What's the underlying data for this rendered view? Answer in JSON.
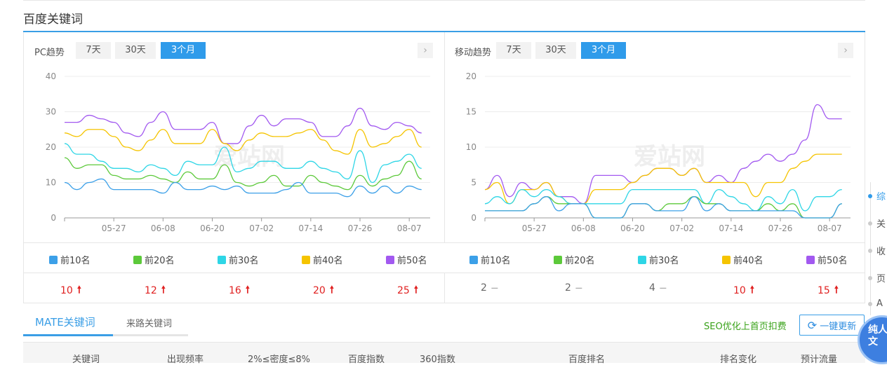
{
  "section_title": "百度关键词",
  "colors": {
    "accent": "#2f9bea",
    "top10": "#3ca0e8",
    "top20": "#5cc93a",
    "top30": "#2ed6e6",
    "top40": "#f5c400",
    "top50": "#a259f0",
    "up": "#e02020",
    "seo": "#3aa31a"
  },
  "ranges": [
    "7天",
    "30天",
    "3个月"
  ],
  "active_range": "3个月",
  "watermark": "爱站网",
  "legend": [
    "前10名",
    "前20名",
    "前30名",
    "前40名",
    "前50名"
  ],
  "pc": {
    "title": "PC趋势",
    "values": [
      {
        "v": "10",
        "trend": "up"
      },
      {
        "v": "12",
        "trend": "up"
      },
      {
        "v": "16",
        "trend": "up"
      },
      {
        "v": "20",
        "trend": "up"
      },
      {
        "v": "25",
        "trend": "up"
      }
    ]
  },
  "mobile": {
    "title": "移动趋势",
    "values": [
      {
        "v": "2",
        "trend": "flat"
      },
      {
        "v": "2",
        "trend": "flat"
      },
      {
        "v": "4",
        "trend": "flat"
      },
      {
        "v": "10",
        "trend": "up"
      },
      {
        "v": "15",
        "trend": "up"
      }
    ]
  },
  "chart_data": [
    {
      "type": "line",
      "title": "PC趋势",
      "ylim": [
        0,
        40
      ],
      "yticks": [
        0,
        10,
        20,
        30,
        40
      ],
      "xticks": [
        "05-27",
        "06-08",
        "06-20",
        "07-02",
        "07-14",
        "07-26",
        "08-07"
      ],
      "grid": true,
      "x": [
        "05-15",
        "05-18",
        "05-21",
        "05-24",
        "05-27",
        "05-30",
        "06-02",
        "06-05",
        "06-08",
        "06-11",
        "06-14",
        "06-17",
        "06-20",
        "06-23",
        "06-26",
        "06-29",
        "07-02",
        "07-05",
        "07-08",
        "07-11",
        "07-14",
        "07-17",
        "07-20",
        "07-23",
        "07-26",
        "07-29",
        "08-01",
        "08-04",
        "08-07",
        "08-10"
      ],
      "series": [
        {
          "name": "前10名",
          "values": [
            10,
            8,
            10,
            11,
            8,
            8,
            8,
            8,
            7,
            10,
            8,
            8,
            9,
            8,
            9,
            7,
            7,
            7,
            8,
            10,
            7,
            7,
            7,
            6,
            9,
            7,
            9,
            7,
            9,
            8
          ]
        },
        {
          "name": "前20名",
          "values": [
            17,
            14,
            15,
            15,
            12,
            11,
            11,
            12,
            11,
            10,
            13,
            11,
            11,
            15,
            10,
            9,
            10,
            12,
            9,
            9,
            12,
            10,
            9,
            8,
            12,
            9,
            11,
            12,
            16,
            11
          ]
        },
        {
          "name": "前30名",
          "values": [
            21,
            18,
            18,
            16,
            14,
            14,
            13,
            15,
            14,
            12,
            16,
            15,
            15,
            20,
            13,
            14,
            16,
            16,
            14,
            14,
            16,
            14,
            13,
            11,
            19,
            10,
            15,
            16,
            18,
            14
          ]
        },
        {
          "name": "前40名",
          "values": [
            24,
            23,
            25,
            25,
            23,
            20,
            19,
            22,
            25,
            21,
            21,
            21,
            25,
            21,
            19,
            22,
            24,
            23,
            23,
            24,
            25,
            22,
            19,
            18,
            25,
            20,
            21,
            23,
            25,
            20
          ]
        },
        {
          "name": "前50名",
          "values": [
            27,
            27,
            29,
            28,
            27,
            24,
            23,
            27,
            30,
            25,
            25,
            25,
            27,
            21,
            21,
            26,
            29,
            26,
            28,
            28,
            27,
            23,
            23,
            26,
            31,
            26,
            25,
            27,
            26,
            24
          ]
        }
      ]
    },
    {
      "type": "line",
      "title": "移动趋势",
      "ylim": [
        0,
        20
      ],
      "yticks": [
        0,
        5,
        10,
        15,
        20
      ],
      "xticks": [
        "05-27",
        "06-08",
        "06-20",
        "07-02",
        "07-14",
        "07-26",
        "08-07"
      ],
      "grid": true,
      "x": [
        "05-15",
        "05-18",
        "05-21",
        "05-24",
        "05-27",
        "05-30",
        "06-02",
        "06-05",
        "06-08",
        "06-11",
        "06-14",
        "06-17",
        "06-20",
        "06-23",
        "06-26",
        "06-29",
        "07-02",
        "07-05",
        "07-08",
        "07-11",
        "07-14",
        "07-17",
        "07-20",
        "07-23",
        "07-26",
        "07-29",
        "08-01",
        "08-04",
        "08-07",
        "08-10"
      ],
      "series": [
        {
          "name": "前10名",
          "values": [
            1,
            1,
            1,
            1,
            2,
            3,
            1,
            2,
            2,
            0,
            0,
            0,
            2,
            2,
            1,
            1,
            1,
            3,
            1,
            2,
            1,
            1,
            1,
            1,
            1,
            1,
            0,
            0,
            0,
            2
          ]
        },
        {
          "name": "前20名",
          "values": [
            1,
            1,
            1,
            1,
            2,
            3,
            2,
            2,
            2,
            0,
            0,
            0,
            2,
            2,
            1,
            2,
            2,
            3,
            2,
            2,
            1,
            1,
            1,
            2,
            1,
            2,
            0,
            0,
            0,
            2
          ]
        },
        {
          "name": "前30名",
          "values": [
            2,
            3,
            2,
            4,
            3,
            4,
            3,
            2,
            2,
            2,
            2,
            2,
            4,
            4,
            4,
            4,
            4,
            4,
            2,
            4,
            3,
            2,
            1,
            3,
            2,
            4,
            1,
            3,
            3,
            4
          ]
        },
        {
          "name": "前40名",
          "values": [
            4,
            5,
            2,
            4,
            4,
            5,
            3,
            2,
            2,
            4,
            4,
            4,
            5,
            6,
            7,
            7,
            6,
            7,
            5,
            5,
            5,
            5,
            3,
            5,
            5,
            7,
            8,
            9,
            9,
            9
          ]
        },
        {
          "name": "前50名",
          "values": [
            4,
            6,
            3,
            5,
            4,
            5,
            3,
            3,
            2,
            6,
            6,
            6,
            5,
            6,
            7,
            7,
            6,
            7,
            5,
            6,
            5,
            7,
            8,
            9,
            8,
            9,
            11,
            16,
            14,
            14
          ]
        }
      ]
    }
  ],
  "keyword_tabs": [
    "MATE关键词",
    "来路关键词"
  ],
  "seo_link": "SEO优化上首页扣费",
  "update_button": "一键更新",
  "table_headers": [
    "关键词",
    "出现频率",
    "2%≤密度≤8%",
    "百度指数",
    "360指数",
    "百度排名",
    "排名变化",
    "预计流量"
  ],
  "side_nav": [
    "综",
    "关",
    "收",
    "页",
    "A"
  ],
  "badge": "纯人 软文"
}
